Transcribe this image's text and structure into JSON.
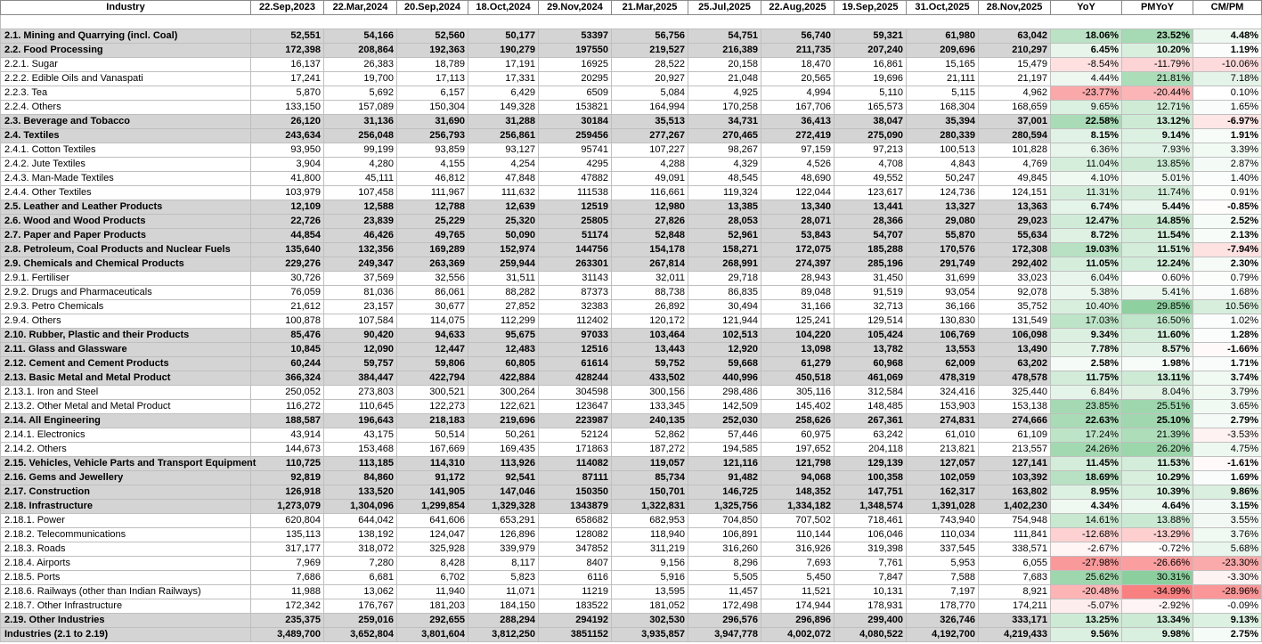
{
  "columns": [
    "Industry",
    "22.Sep,2023",
    "22.Mar,2024",
    "20.Sep,2024",
    "18.Oct,2024",
    "29.Nov,2024",
    "21.Mar,2025",
    "25.Jul,2025",
    "22.Aug,2025",
    "19.Sep,2025",
    "31.Oct,2025",
    "28.Nov,2025",
    "YoY",
    "PMYoY",
    "CM/PM"
  ],
  "colors": {
    "group_row": "#d4d4d4",
    "positive": "#63be7b",
    "negative": "#f8696b"
  },
  "rows": [
    {
      "t": "g",
      "v": [
        "2.1. Mining and Quarrying (incl. Coal)",
        "52,551",
        "54,166",
        "52,560",
        "50,177",
        "53397",
        "56,756",
        "54,751",
        "56,740",
        "59,321",
        "61,980",
        "63,042",
        "18.06%",
        "23.52%",
        "4.48%"
      ],
      "p": [
        18.06,
        23.52,
        4.48
      ]
    },
    {
      "t": "g",
      "v": [
        "2.2. Food Processing",
        "172,398",
        "208,864",
        "192,363",
        "190,279",
        "197550",
        "219,527",
        "216,389",
        "211,735",
        "207,240",
        "209,696",
        "210,297",
        "6.45%",
        "10.20%",
        "1.19%"
      ],
      "p": [
        6.45,
        10.2,
        1.19
      ]
    },
    {
      "t": "s",
      "v": [
        "2.2.1. Sugar",
        "16,137",
        "26,383",
        "18,789",
        "17,191",
        "16925",
        "28,522",
        "20,158",
        "18,470",
        "16,861",
        "15,165",
        "15,479",
        "-8.54%",
        "-11.79%",
        "-10.06%"
      ],
      "p": [
        -8.54,
        -11.79,
        -10.06
      ]
    },
    {
      "t": "s",
      "v": [
        "2.2.2. Edible Oils and Vanaspati",
        "17,241",
        "19,700",
        "17,113",
        "17,331",
        "20295",
        "20,927",
        "21,048",
        "20,565",
        "19,696",
        "21,111",
        "21,197",
        "4.44%",
        "21.81%",
        "7.18%"
      ],
      "p": [
        4.44,
        21.81,
        7.18
      ]
    },
    {
      "t": "s",
      "v": [
        "2.2.3. Tea",
        "5,870",
        "5,692",
        "6,157",
        "6,429",
        "6509",
        "5,084",
        "4,925",
        "4,994",
        "5,110",
        "5,115",
        "4,962",
        "-23.77%",
        "-20.44%",
        "0.10%"
      ],
      "p": [
        -23.77,
        -20.44,
        0.1
      ]
    },
    {
      "t": "s",
      "v": [
        "2.2.4. Others",
        "133,150",
        "157,089",
        "150,304",
        "149,328",
        "153821",
        "164,994",
        "170,258",
        "167,706",
        "165,573",
        "168,304",
        "168,659",
        "9.65%",
        "12.71%",
        "1.65%"
      ],
      "p": [
        9.65,
        12.71,
        1.65
      ]
    },
    {
      "t": "g",
      "v": [
        "2.3. Beverage and Tobacco",
        "26,120",
        "31,136",
        "31,690",
        "31,288",
        "30184",
        "35,513",
        "34,731",
        "36,413",
        "38,047",
        "35,394",
        "37,001",
        "22.58%",
        "13.12%",
        "-6.97%"
      ],
      "p": [
        22.58,
        13.12,
        -6.97
      ]
    },
    {
      "t": "g",
      "v": [
        "2.4. Textiles",
        "243,634",
        "256,048",
        "256,793",
        "256,861",
        "259456",
        "277,267",
        "270,465",
        "272,419",
        "275,090",
        "280,339",
        "280,594",
        "8.15%",
        "9.14%",
        "1.91%"
      ],
      "p": [
        8.15,
        9.14,
        1.91
      ]
    },
    {
      "t": "s",
      "v": [
        "2.4.1. Cotton Textiles",
        "93,950",
        "99,199",
        "93,859",
        "93,127",
        "95741",
        "107,227",
        "98,267",
        "97,159",
        "97,213",
        "100,513",
        "101,828",
        "6.36%",
        "7.93%",
        "3.39%"
      ],
      "p": [
        6.36,
        7.93,
        3.39
      ]
    },
    {
      "t": "s",
      "v": [
        "2.4.2. Jute Textiles",
        "3,904",
        "4,280",
        "4,155",
        "4,254",
        "4295",
        "4,288",
        "4,329",
        "4,526",
        "4,708",
        "4,843",
        "4,769",
        "11.04%",
        "13.85%",
        "2.87%"
      ],
      "p": [
        11.04,
        13.85,
        2.87
      ]
    },
    {
      "t": "s",
      "v": [
        "2.4.3. Man-Made Textiles",
        "41,800",
        "45,111",
        "46,812",
        "47,848",
        "47882",
        "49,091",
        "48,545",
        "48,690",
        "49,552",
        "50,247",
        "49,845",
        "4.10%",
        "5.01%",
        "1.40%"
      ],
      "p": [
        4.1,
        5.01,
        1.4
      ]
    },
    {
      "t": "s",
      "v": [
        "2.4.4. Other Textiles",
        "103,979",
        "107,458",
        "111,967",
        "111,632",
        "111538",
        "116,661",
        "119,324",
        "122,044",
        "123,617",
        "124,736",
        "124,151",
        "11.31%",
        "11.74%",
        "0.91%"
      ],
      "p": [
        11.31,
        11.74,
        0.91
      ]
    },
    {
      "t": "g",
      "v": [
        "2.5. Leather and Leather Products",
        "12,109",
        "12,588",
        "12,788",
        "12,639",
        "12519",
        "12,980",
        "13,385",
        "13,340",
        "13,441",
        "13,327",
        "13,363",
        "6.74%",
        "5.44%",
        "-0.85%"
      ],
      "p": [
        6.74,
        5.44,
        -0.85
      ]
    },
    {
      "t": "g",
      "v": [
        "2.6. Wood and Wood Products",
        "22,726",
        "23,839",
        "25,229",
        "25,320",
        "25805",
        "27,826",
        "28,053",
        "28,071",
        "28,366",
        "29,080",
        "29,023",
        "12.47%",
        "14.85%",
        "2.52%"
      ],
      "p": [
        12.47,
        14.85,
        2.52
      ]
    },
    {
      "t": "g",
      "v": [
        "2.7. Paper and Paper Products",
        "44,854",
        "46,426",
        "49,765",
        "50,090",
        "51174",
        "52,848",
        "52,961",
        "53,843",
        "54,707",
        "55,870",
        "55,634",
        "8.72%",
        "11.54%",
        "2.13%"
      ],
      "p": [
        8.72,
        11.54,
        2.13
      ]
    },
    {
      "t": "g",
      "v": [
        "2.8. Petroleum, Coal Products and Nuclear Fuels",
        "135,640",
        "132,356",
        "169,289",
        "152,974",
        "144756",
        "154,178",
        "158,271",
        "172,075",
        "185,288",
        "170,576",
        "172,308",
        "19.03%",
        "11.51%",
        "-7.94%"
      ],
      "p": [
        19.03,
        11.51,
        -7.94
      ]
    },
    {
      "t": "g",
      "v": [
        "2.9. Chemicals and Chemical Products",
        "229,276",
        "249,347",
        "263,369",
        "259,944",
        "263301",
        "267,814",
        "268,991",
        "274,397",
        "285,196",
        "291,749",
        "292,402",
        "11.05%",
        "12.24%",
        "2.30%"
      ],
      "p": [
        11.05,
        12.24,
        2.3
      ]
    },
    {
      "t": "s",
      "v": [
        "2.9.1. Fertiliser",
        "30,726",
        "37,569",
        "32,556",
        "31,511",
        "31143",
        "32,011",
        "29,718",
        "28,943",
        "31,450",
        "31,699",
        "33,023",
        "6.04%",
        "0.60%",
        "0.79%"
      ],
      "p": [
        6.04,
        0.6,
        0.79
      ]
    },
    {
      "t": "s",
      "v": [
        "2.9.2. Drugs and Pharmaceuticals",
        "76,059",
        "81,036",
        "86,061",
        "88,282",
        "87373",
        "88,738",
        "86,835",
        "89,048",
        "91,519",
        "93,054",
        "92,078",
        "5.38%",
        "5.41%",
        "1.68%"
      ],
      "p": [
        5.38,
        5.41,
        1.68
      ]
    },
    {
      "t": "s",
      "v": [
        "2.9.3. Petro Chemicals",
        "21,612",
        "23,157",
        "30,677",
        "27,852",
        "32383",
        "26,892",
        "30,494",
        "31,166",
        "32,713",
        "36,166",
        "35,752",
        "10.40%",
        "29.85%",
        "10.56%"
      ],
      "p": [
        10.4,
        29.85,
        10.56
      ]
    },
    {
      "t": "s",
      "v": [
        "2.9.4. Others",
        "100,878",
        "107,584",
        "114,075",
        "112,299",
        "112402",
        "120,172",
        "121,944",
        "125,241",
        "129,514",
        "130,830",
        "131,549",
        "17.03%",
        "16.50%",
        "1.02%"
      ],
      "p": [
        17.03,
        16.5,
        1.02
      ]
    },
    {
      "t": "g",
      "v": [
        "2.10. Rubber, Plastic and their Products",
        "85,476",
        "90,420",
        "94,633",
        "95,675",
        "97033",
        "103,464",
        "102,513",
        "104,220",
        "105,424",
        "106,769",
        "106,098",
        "9.34%",
        "11.60%",
        "1.28%"
      ],
      "p": [
        9.34,
        11.6,
        1.28
      ]
    },
    {
      "t": "g",
      "v": [
        "2.11. Glass and Glassware",
        "10,845",
        "12,090",
        "12,447",
        "12,483",
        "12516",
        "13,443",
        "12,920",
        "13,098",
        "13,782",
        "13,553",
        "13,490",
        "7.78%",
        "8.57%",
        "-1.66%"
      ],
      "p": [
        7.78,
        8.57,
        -1.66
      ]
    },
    {
      "t": "g",
      "v": [
        "2.12. Cement and Cement Products",
        "60,244",
        "59,757",
        "59,806",
        "60,805",
        "61614",
        "59,752",
        "59,668",
        "61,279",
        "60,968",
        "62,009",
        "63,202",
        "2.58%",
        "1.98%",
        "1.71%"
      ],
      "p": [
        2.58,
        1.98,
        1.71
      ]
    },
    {
      "t": "g",
      "v": [
        "2.13. Basic Metal and Metal Product",
        "366,324",
        "384,447",
        "422,794",
        "422,884",
        "428244",
        "433,502",
        "440,996",
        "450,518",
        "461,069",
        "478,319",
        "478,578",
        "11.75%",
        "13.11%",
        "3.74%"
      ],
      "p": [
        11.75,
        13.11,
        3.74
      ]
    },
    {
      "t": "s",
      "v": [
        "2.13.1. Iron and Steel",
        "250,052",
        "273,803",
        "300,521",
        "300,264",
        "304598",
        "300,156",
        "298,486",
        "305,116",
        "312,584",
        "324,416",
        "325,440",
        "6.84%",
        "8.04%",
        "3.79%"
      ],
      "p": [
        6.84,
        8.04,
        3.79
      ]
    },
    {
      "t": "s",
      "v": [
        "2.13.2. Other Metal and Metal Product",
        "116,272",
        "110,645",
        "122,273",
        "122,621",
        "123647",
        "133,345",
        "142,509",
        "145,402",
        "148,485",
        "153,903",
        "153,138",
        "23.85%",
        "25.51%",
        "3.65%"
      ],
      "p": [
        23.85,
        25.51,
        3.65
      ]
    },
    {
      "t": "g",
      "v": [
        "2.14. All Engineering",
        "188,587",
        "196,643",
        "218,183",
        "219,696",
        "223987",
        "240,135",
        "252,030",
        "258,626",
        "267,361",
        "274,831",
        "274,666",
        "22.63%",
        "25.10%",
        "2.79%"
      ],
      "p": [
        22.63,
        25.1,
        2.79
      ]
    },
    {
      "t": "s",
      "v": [
        "2.14.1. Electronics",
        "43,914",
        "43,175",
        "50,514",
        "50,261",
        "52124",
        "52,862",
        "57,446",
        "60,975",
        "63,242",
        "61,010",
        "61,109",
        "17.24%",
        "21.39%",
        "-3.53%"
      ],
      "p": [
        17.24,
        21.39,
        -3.53
      ]
    },
    {
      "t": "s",
      "v": [
        "2.14.2. Others",
        "144,673",
        "153,468",
        "167,669",
        "169,435",
        "171863",
        "187,272",
        "194,585",
        "197,652",
        "204,118",
        "213,821",
        "213,557",
        "24.26%",
        "26.20%",
        "4.75%"
      ],
      "p": [
        24.26,
        26.2,
        4.75
      ]
    },
    {
      "t": "g",
      "v": [
        "2.15. Vehicles, Vehicle Parts and Transport Equipment",
        "110,725",
        "113,185",
        "114,310",
        "113,926",
        "114082",
        "119,057",
        "121,116",
        "121,798",
        "129,139",
        "127,057",
        "127,141",
        "11.45%",
        "11.53%",
        "-1.61%"
      ],
      "p": [
        11.45,
        11.53,
        -1.61
      ]
    },
    {
      "t": "g",
      "v": [
        "2.16. Gems and Jewellery",
        "92,819",
        "84,860",
        "91,172",
        "92,541",
        "87111",
        "85,734",
        "91,482",
        "94,068",
        "100,358",
        "102,059",
        "103,392",
        "18.69%",
        "10.29%",
        "1.69%"
      ],
      "p": [
        18.69,
        10.29,
        1.69
      ]
    },
    {
      "t": "g",
      "v": [
        "2.17. Construction",
        "126,918",
        "133,520",
        "141,905",
        "147,046",
        "150350",
        "150,701",
        "146,725",
        "148,352",
        "147,751",
        "162,317",
        "163,802",
        "8.95%",
        "10.39%",
        "9.86%"
      ],
      "p": [
        8.95,
        10.39,
        9.86
      ]
    },
    {
      "t": "g",
      "v": [
        "2.18. Infrastructure",
        "1,273,079",
        "1,304,096",
        "1,299,854",
        "1,329,328",
        "1343879",
        "1,322,831",
        "1,325,756",
        "1,334,182",
        "1,348,574",
        "1,391,028",
        "1,402,230",
        "4.34%",
        "4.64%",
        "3.15%"
      ],
      "p": [
        4.34,
        4.64,
        3.15
      ]
    },
    {
      "t": "s",
      "v": [
        "2.18.1. Power",
        "620,804",
        "644,042",
        "641,606",
        "653,291",
        "658682",
        "682,953",
        "704,850",
        "707,502",
        "718,461",
        "743,940",
        "754,948",
        "14.61%",
        "13.88%",
        "3.55%"
      ],
      "p": [
        14.61,
        13.88,
        3.55
      ]
    },
    {
      "t": "s",
      "v": [
        "2.18.2. Telecommunications",
        "135,113",
        "138,192",
        "124,047",
        "126,896",
        "128082",
        "118,940",
        "106,891",
        "110,144",
        "106,046",
        "110,034",
        "111,841",
        "-12.68%",
        "-13.29%",
        "3.76%"
      ],
      "p": [
        -12.68,
        -13.29,
        3.76
      ]
    },
    {
      "t": "s",
      "v": [
        "2.18.3. Roads",
        "317,177",
        "318,072",
        "325,928",
        "339,979",
        "347852",
        "311,219",
        "316,260",
        "316,926",
        "319,398",
        "337,545",
        "338,571",
        "-2.67%",
        "-0.72%",
        "5.68%"
      ],
      "p": [
        -2.67,
        -0.72,
        5.68
      ]
    },
    {
      "t": "s",
      "v": [
        "2.18.4. Airports",
        "7,969",
        "7,280",
        "8,428",
        "8,117",
        "8407",
        "9,156",
        "8,296",
        "7,693",
        "7,761",
        "5,953",
        "6,055",
        "-27.98%",
        "-26.66%",
        "-23.30%"
      ],
      "p": [
        -27.98,
        -26.66,
        -23.3
      ]
    },
    {
      "t": "s",
      "v": [
        "2.18.5. Ports",
        "7,686",
        "6,681",
        "6,702",
        "5,823",
        "6116",
        "5,916",
        "5,505",
        "5,450",
        "7,847",
        "7,588",
        "7,683",
        "25.62%",
        "30.31%",
        "-3.30%"
      ],
      "p": [
        25.62,
        30.31,
        -3.3
      ]
    },
    {
      "t": "s",
      "v": [
        "2.18.6. Railways (other than Indian Railways)",
        "11,988",
        "13,062",
        "11,940",
        "11,071",
        "11219",
        "13,595",
        "11,457",
        "11,521",
        "10,131",
        "7,197",
        "8,921",
        "-20.48%",
        "-34.99%",
        "-28.96%"
      ],
      "p": [
        -20.48,
        -34.99,
        -28.96
      ]
    },
    {
      "t": "s",
      "v": [
        "2.18.7. Other Infrastructure",
        "172,342",
        "176,767",
        "181,203",
        "184,150",
        "183522",
        "181,052",
        "172,498",
        "174,944",
        "178,931",
        "178,770",
        "174,211",
        "-5.07%",
        "-2.92%",
        "-0.09%"
      ],
      "p": [
        -5.07,
        -2.92,
        -0.09
      ]
    },
    {
      "t": "g",
      "v": [
        "2.19. Other Industries",
        "235,375",
        "259,016",
        "292,655",
        "288,294",
        "294192",
        "302,530",
        "296,576",
        "296,896",
        "299,400",
        "326,746",
        "333,171",
        "13.25%",
        "13.34%",
        "9.13%"
      ],
      "p": [
        13.25,
        13.34,
        9.13
      ]
    },
    {
      "t": "g",
      "v": [
        "Industries (2.1 to 2.19)",
        "3,489,700",
        "3,652,804",
        "3,801,604",
        "3,812,250",
        "3851152",
        "3,935,857",
        "3,947,778",
        "4,002,072",
        "4,080,522",
        "4,192,700",
        "4,219,433",
        "9.56%",
        "9.98%",
        "2.75%"
      ],
      "p": [
        9.56,
        9.98,
        2.75
      ]
    }
  ]
}
